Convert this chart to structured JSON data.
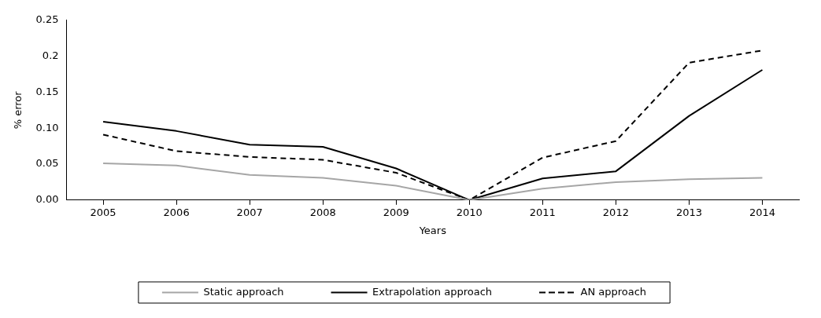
{
  "chart_data": {
    "type": "line",
    "xlabel": "Years",
    "ylabel": "% error",
    "categories": [
      "2005",
      "2006",
      "2007",
      "2008",
      "2009",
      "2010",
      "2011",
      "2012",
      "2013",
      "2014"
    ],
    "series": [
      {
        "name": "Static approach",
        "color": "#a6a6a6",
        "line_style": "solid",
        "values": [
          0.051,
          0.048,
          0.035,
          0.031,
          0.02,
          0,
          0.016,
          0.025,
          0.029,
          0.031
        ]
      },
      {
        "name": "Extrapolation approach",
        "color": "#000000",
        "line_style": "solid",
        "values": [
          0.109,
          0.096,
          0.077,
          0.074,
          0.044,
          0,
          0.03,
          0.04,
          0.117,
          0.181
        ]
      },
      {
        "name": "AN approach",
        "color": "#000000",
        "line_style": "dashed",
        "values": [
          0.091,
          0.068,
          0.06,
          0.056,
          0.038,
          0,
          0.059,
          0.082,
          0.191,
          0.208
        ]
      }
    ],
    "ylim": [
      0,
      0.25
    ],
    "yticks": [
      {
        "value": 0,
        "label": "0.00"
      },
      {
        "value": 0.05,
        "label": "0.05"
      },
      {
        "value": 0.1,
        "label": "0.10"
      },
      {
        "value": 0.15,
        "label": "0.15"
      },
      {
        "value": 0.2,
        "label": "0.2"
      },
      {
        "value": 0.25,
        "label": "0.25"
      }
    ],
    "grid": false,
    "legend": "bottom",
    "marker": "none"
  }
}
